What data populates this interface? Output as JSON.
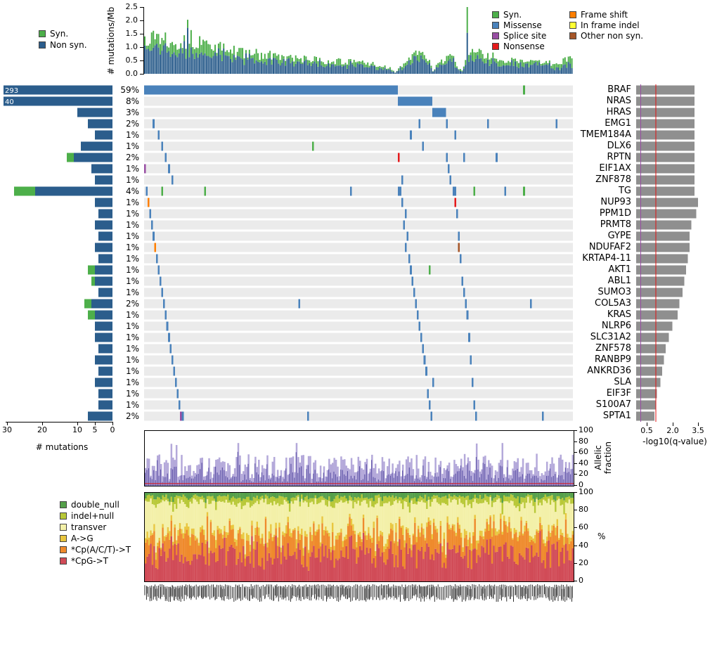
{
  "n_samples": 250,
  "seed": 13,
  "colors": {
    "syn": "#4daf4a",
    "non_syn": "#2b5d8c",
    "missense": "#4a82bb",
    "splice_site": "#984ea3",
    "nonsense": "#e41a1c",
    "frame_shift": "#ff7f00",
    "in_frame_indel": "#ffff33",
    "other_non_syn": "#a65628",
    "matrix_bg": "#ebebeb",
    "q_bar": "#8f8f8f",
    "q_red_line": "#e01010",
    "q_purple_line": "#984ea3",
    "allelic_light": "#b4a9da",
    "allelic_dark": "#5a4fa5",
    "allelic_red_line": "#e01010",
    "sig_double_null": "#55a04a",
    "sig_indel_null": "#b8c837",
    "sig_transver": "#f3f0a8",
    "sig_A_G": "#e9c63e",
    "sig_CpACT_T": "#ef8a2c",
    "sig_CpG_T": "#d14b57"
  },
  "legend_rate": [
    {
      "label": "Syn.",
      "color_key": "syn"
    },
    {
      "label": "Non syn.",
      "color_key": "non_syn"
    }
  ],
  "legend_types_col1": [
    {
      "label": "Syn.",
      "color_key": "syn"
    },
    {
      "label": "Missense",
      "color_key": "missense"
    },
    {
      "label": "Splice site",
      "color_key": "splice_site"
    },
    {
      "label": "Nonsense",
      "color_key": "nonsense"
    }
  ],
  "legend_types_col2": [
    {
      "label": "Frame shift",
      "color_key": "frame_shift"
    },
    {
      "label": "In frame indel",
      "color_key": "in_frame_indel"
    },
    {
      "label": "Other non syn.",
      "color_key": "other_non_syn"
    }
  ],
  "legend_signatures": [
    {
      "label": "double_null",
      "color_key": "sig_double_null"
    },
    {
      "label": "indel+null",
      "color_key": "sig_indel_null"
    },
    {
      "label": "transver",
      "color_key": "sig_transver"
    },
    {
      "label": "A->G",
      "color_key": "sig_A_G"
    },
    {
      "label": "*Cp(A/C/T)->T",
      "color_key": "sig_CpACT_T"
    },
    {
      "label": "*CpG->T",
      "color_key": "sig_CpG_T"
    }
  ],
  "chart_data": {
    "type": "comut-grid",
    "panels": {
      "mutation_rate": {
        "type": "bar",
        "ylabel": "# mutations/Mb",
        "yticks": [
          0.0,
          0.5,
          1.0,
          1.5,
          2.0,
          2.5
        ],
        "ylim": [
          0,
          2.5
        ],
        "envelope": [
          [
            0,
            1.35
          ],
          [
            4,
            1.5
          ],
          [
            24,
            1.15
          ],
          [
            25,
            2.5
          ],
          [
            26,
            1.3
          ],
          [
            50,
            0.85
          ],
          [
            90,
            0.55
          ],
          [
            130,
            0.4
          ],
          [
            143,
            0.2
          ],
          [
            146,
            0.05
          ],
          [
            149,
            0.3
          ],
          [
            155,
            0.6
          ],
          [
            162,
            0.8
          ],
          [
            166,
            0.5
          ],
          [
            168,
            0.1
          ],
          [
            171,
            0.35
          ],
          [
            176,
            0.65
          ],
          [
            179,
            0.7
          ],
          [
            182,
            0.3
          ],
          [
            185,
            0.12
          ],
          [
            187,
            0.45
          ],
          [
            188,
            2.6
          ],
          [
            189,
            0.9
          ],
          [
            196,
            0.72
          ],
          [
            210,
            0.55
          ],
          [
            225,
            0.45
          ],
          [
            240,
            0.38
          ],
          [
            246,
            0.55
          ],
          [
            249,
            0.5
          ]
        ],
        "syn_fraction_mean": 0.22
      },
      "mutations_axis": {
        "label": "# mutations",
        "ticks": [
          30,
          20,
          10,
          5,
          0
        ],
        "max": 30
      },
      "qvalue_axis": {
        "label": "-log10(q-value)",
        "ticks": [
          0.5,
          2.0,
          3.5
        ],
        "red_line": 1.0,
        "purple_line": 0.12
      },
      "allelic": {
        "type": "bar",
        "ylabel": "Allelic fraction",
        "ylabel_lines": [
          "Allelic",
          "fraction"
        ],
        "yticks": [
          0,
          20,
          40,
          60,
          80,
          100
        ],
        "ylim": [
          0,
          100
        ],
        "red_line": 4
      },
      "signature": {
        "type": "stacked-bar",
        "ylabel": "%",
        "yticks": [
          0,
          20,
          40,
          60,
          80,
          100
        ],
        "ylim": [
          0,
          100
        ],
        "stack_order_bottom_to_top": [
          "sig_CpG_T",
          "sig_CpACT_T",
          "sig_A_G",
          "sig_transver",
          "sig_indel_null",
          "sig_double_null"
        ],
        "mean_fractions": {
          "sig_CpG_T": 0.33,
          "sig_CpACT_T": 0.2,
          "sig_A_G": 0.05,
          "sig_transver": 0.31,
          "sig_indel_null": 0.06,
          "sig_double_null": 0.05
        }
      }
    },
    "genes": [
      {
        "name": "BRAF",
        "pct": "59%",
        "mutations": 293,
        "count_label": "293",
        "syn_mutations": 0,
        "q": 3.3,
        "runs": [
          [
            0,
            147,
            "missense"
          ]
        ],
        "marks": [
          [
            221,
            "syn"
          ]
        ]
      },
      {
        "name": "NRAS",
        "pct": "8%",
        "mutations": 40,
        "count_label": "40",
        "syn_mutations": 0,
        "q": 3.3,
        "runs": [
          [
            148,
            167,
            "missense"
          ]
        ],
        "marks": []
      },
      {
        "name": "HRAS",
        "pct": "3%",
        "mutations": 10,
        "q": 3.3,
        "runs": [
          [
            168,
            175,
            "missense"
          ]
        ],
        "marks": []
      },
      {
        "name": "EMG1",
        "pct": "2%",
        "mutations": 7,
        "q": 3.3,
        "marks": [
          [
            5,
            "missense"
          ],
          [
            160,
            "missense"
          ],
          [
            176,
            "missense"
          ],
          [
            200,
            "missense"
          ],
          [
            240,
            "missense"
          ]
        ]
      },
      {
        "name": "TMEM184A",
        "pct": "1%",
        "mutations": 5,
        "q": 3.3,
        "marks": [
          [
            8,
            "missense"
          ],
          [
            155,
            "missense"
          ],
          [
            181,
            "missense"
          ]
        ]
      },
      {
        "name": "DLX6",
        "pct": "1%",
        "mutations": 9,
        "q": 3.3,
        "marks": [
          [
            10,
            "missense"
          ],
          [
            98,
            "syn"
          ],
          [
            162,
            "missense"
          ]
        ]
      },
      {
        "name": "RPTN",
        "pct": "2%",
        "mutations": 13,
        "syn_mutations": 2,
        "q": 3.3,
        "marks": [
          [
            12,
            "missense"
          ],
          [
            148,
            "nonsense"
          ],
          [
            176,
            "missense"
          ],
          [
            186,
            "missense"
          ],
          [
            205,
            "missense"
          ]
        ]
      },
      {
        "name": "EIF1AX",
        "pct": "1%",
        "mutations": 6,
        "q": 3.3,
        "marks": [
          [
            0,
            "splice_site"
          ],
          [
            14,
            "missense"
          ],
          [
            177,
            "missense"
          ]
        ]
      },
      {
        "name": "ZNF878",
        "pct": "1%",
        "mutations": 5,
        "q": 3.3,
        "marks": [
          [
            16,
            "missense"
          ],
          [
            150,
            "missense"
          ],
          [
            178,
            "missense"
          ]
        ]
      },
      {
        "name": "TG",
        "pct": "4%",
        "mutations": 28,
        "syn_mutations": 6,
        "q": 3.3,
        "marks": [
          [
            1,
            "missense"
          ],
          [
            10,
            "syn"
          ],
          [
            35,
            "syn"
          ],
          [
            120,
            "missense"
          ],
          [
            148,
            "missense"
          ],
          [
            149,
            "missense"
          ],
          [
            180,
            "missense"
          ],
          [
            181,
            "missense"
          ],
          [
            192,
            "syn"
          ],
          [
            210,
            "missense"
          ],
          [
            221,
            "syn"
          ]
        ]
      },
      {
        "name": "NUP93",
        "pct": "1%",
        "mutations": 5,
        "q": 3.5,
        "marks": [
          [
            2,
            "frame_shift"
          ],
          [
            150,
            "missense"
          ],
          [
            181,
            "nonsense"
          ]
        ]
      },
      {
        "name": "PPM1D",
        "pct": "1%",
        "mutations": 4,
        "q": 3.4,
        "marks": [
          [
            3,
            "missense"
          ],
          [
            152,
            "missense"
          ],
          [
            182,
            "missense"
          ]
        ]
      },
      {
        "name": "PRMT8",
        "pct": "1%",
        "mutations": 5,
        "q": 3.1,
        "marks": [
          [
            4,
            "missense"
          ],
          [
            151,
            "missense"
          ]
        ]
      },
      {
        "name": "GYPE",
        "pct": "1%",
        "mutations": 4,
        "q": 3.0,
        "marks": [
          [
            5,
            "missense"
          ],
          [
            153,
            "missense"
          ],
          [
            183,
            "missense"
          ]
        ]
      },
      {
        "name": "NDUFAF2",
        "pct": "1%",
        "mutations": 5,
        "q": 3.0,
        "marks": [
          [
            6,
            "frame_shift"
          ],
          [
            152,
            "missense"
          ],
          [
            183,
            "other_non_syn"
          ]
        ]
      },
      {
        "name": "KRTAP4-11",
        "pct": "1%",
        "mutations": 4,
        "q": 2.9,
        "marks": [
          [
            7,
            "missense"
          ],
          [
            154,
            "missense"
          ],
          [
            184,
            "missense"
          ]
        ]
      },
      {
        "name": "AKT1",
        "pct": "1%",
        "mutations": 7,
        "syn_mutations": 2,
        "q": 2.8,
        "marks": [
          [
            8,
            "missense"
          ],
          [
            155,
            "missense"
          ],
          [
            166,
            "syn"
          ]
        ]
      },
      {
        "name": "ABL1",
        "pct": "1%",
        "mutations": 6,
        "syn_mutations": 1,
        "q": 2.7,
        "marks": [
          [
            9,
            "missense"
          ],
          [
            156,
            "missense"
          ],
          [
            185,
            "missense"
          ]
        ]
      },
      {
        "name": "SUMO3",
        "pct": "1%",
        "mutations": 4,
        "q": 2.6,
        "marks": [
          [
            10,
            "missense"
          ],
          [
            157,
            "missense"
          ],
          [
            186,
            "missense"
          ]
        ]
      },
      {
        "name": "COL5A3",
        "pct": "2%",
        "mutations": 8,
        "syn_mutations": 2,
        "q": 2.4,
        "marks": [
          [
            11,
            "missense"
          ],
          [
            90,
            "missense"
          ],
          [
            158,
            "missense"
          ],
          [
            187,
            "missense"
          ],
          [
            225,
            "missense"
          ]
        ]
      },
      {
        "name": "KRAS",
        "pct": "1%",
        "mutations": 7,
        "syn_mutations": 2,
        "q": 2.3,
        "marks": [
          [
            12,
            "missense"
          ],
          [
            159,
            "missense"
          ],
          [
            188,
            "missense"
          ]
        ]
      },
      {
        "name": "NLRP6",
        "pct": "1%",
        "mutations": 5,
        "q": 2.0,
        "marks": [
          [
            13,
            "missense"
          ],
          [
            160,
            "missense"
          ]
        ]
      },
      {
        "name": "SLC31A2",
        "pct": "1%",
        "mutations": 5,
        "q": 1.8,
        "marks": [
          [
            14,
            "missense"
          ],
          [
            161,
            "missense"
          ],
          [
            189,
            "missense"
          ]
        ]
      },
      {
        "name": "ZNF578",
        "pct": "1%",
        "mutations": 4,
        "q": 1.6,
        "marks": [
          [
            15,
            "missense"
          ],
          [
            162,
            "missense"
          ]
        ]
      },
      {
        "name": "RANBP9",
        "pct": "1%",
        "mutations": 5,
        "q": 1.5,
        "marks": [
          [
            16,
            "missense"
          ],
          [
            163,
            "missense"
          ],
          [
            190,
            "missense"
          ]
        ]
      },
      {
        "name": "ANKRD36",
        "pct": "1%",
        "mutations": 4,
        "q": 1.4,
        "marks": [
          [
            17,
            "missense"
          ],
          [
            164,
            "missense"
          ]
        ]
      },
      {
        "name": "SLA",
        "pct": "1%",
        "mutations": 5,
        "q": 1.3,
        "marks": [
          [
            18,
            "missense"
          ],
          [
            168,
            "missense"
          ],
          [
            191,
            "missense"
          ]
        ]
      },
      {
        "name": "EIF3F",
        "pct": "1%",
        "mutations": 4,
        "q": 1.1,
        "marks": [
          [
            19,
            "missense"
          ],
          [
            165,
            "missense"
          ]
        ]
      },
      {
        "name": "S100A7",
        "pct": "1%",
        "mutations": 4,
        "q": 1.0,
        "marks": [
          [
            20,
            "missense"
          ],
          [
            166,
            "missense"
          ],
          [
            192,
            "missense"
          ]
        ]
      },
      {
        "name": "SPTA1",
        "pct": "2%",
        "mutations": 7,
        "q": 0.95,
        "marks": [
          [
            21,
            "splice_site"
          ],
          [
            22,
            "missense"
          ],
          [
            95,
            "missense"
          ],
          [
            167,
            "missense"
          ],
          [
            193,
            "missense"
          ],
          [
            232,
            "missense"
          ]
        ]
      }
    ]
  }
}
